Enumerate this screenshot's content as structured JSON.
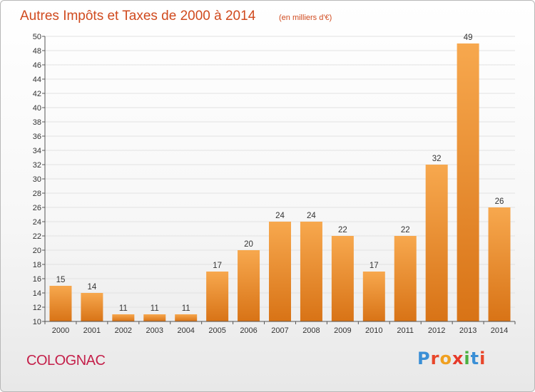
{
  "title": "Autres Impôts et Taxes de 2000 à 2014",
  "unit": "(en milliers d'€)",
  "commune": "COLOGNAC",
  "logo": {
    "text": "Proxiti",
    "letters": [
      {
        "ch": "P",
        "color": "#3a8fd6"
      },
      {
        "ch": "r",
        "color": "#e8462a"
      },
      {
        "ch": "o",
        "color": "#f0a020"
      },
      {
        "ch": "x",
        "color": "#e63a2a"
      },
      {
        "ch": "i",
        "color": "#4ab040"
      },
      {
        "ch": "t",
        "color": "#3a8fd6"
      },
      {
        "ch": "i",
        "color": "#e8462a"
      }
    ]
  },
  "colors": {
    "bar_top": "#f7a84e",
    "bar_bottom": "#d87316",
    "title": "#d04a1e",
    "commune": "#c4204a",
    "grid": "#e2e2e2"
  },
  "chart_data": {
    "type": "bar",
    "title": "Autres Impôts et Taxes de 2000 à 2014",
    "subtitle": "(en milliers d'€)",
    "categories": [
      "2000",
      "2001",
      "2002",
      "2003",
      "2004",
      "2005",
      "2006",
      "2007",
      "2008",
      "2009",
      "2010",
      "2011",
      "2012",
      "2013",
      "2014"
    ],
    "values": [
      15,
      14,
      11,
      11,
      11,
      17,
      20,
      24,
      24,
      22,
      17,
      22,
      32,
      49,
      26
    ],
    "ylim": [
      10,
      50
    ],
    "ytick_step": 2,
    "grid": true,
    "data_labels": true
  }
}
